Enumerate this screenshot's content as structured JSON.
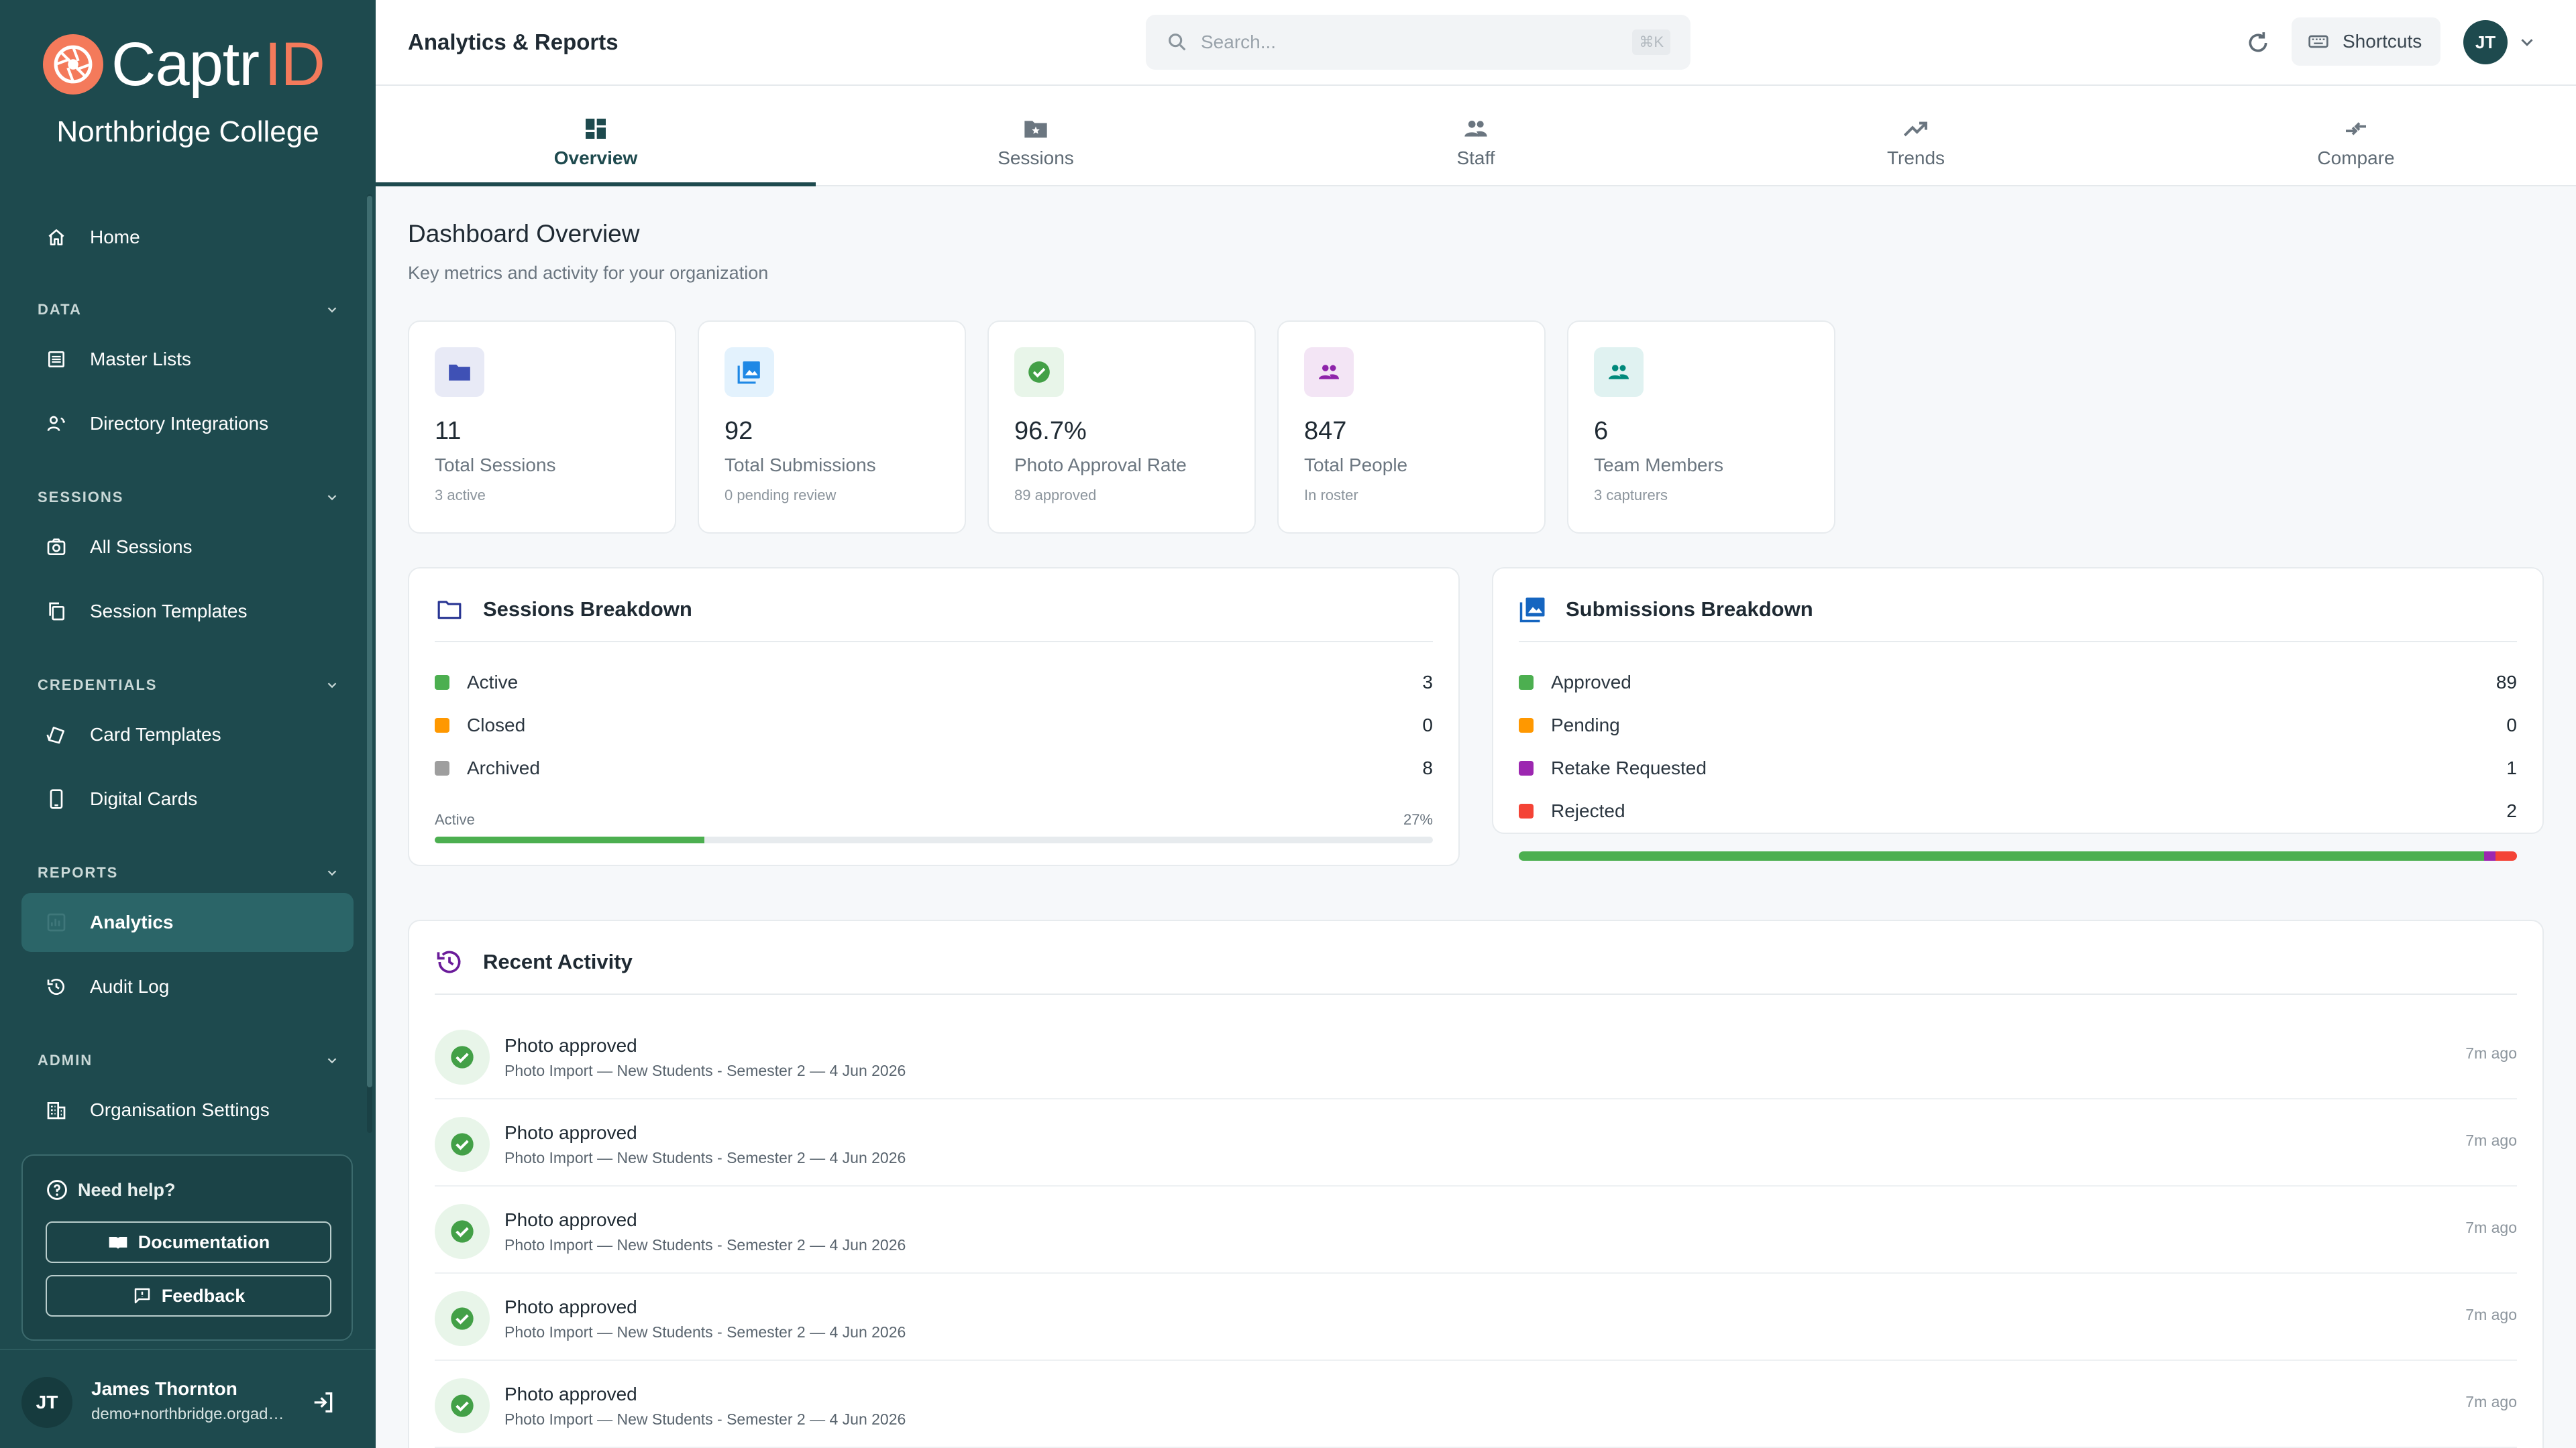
{
  "brand": {
    "name": "Captr",
    "name_suffix": "ID",
    "org": "Northbridge College",
    "accent": "#f47a5b"
  },
  "sidebar": {
    "home": "Home",
    "sections": {
      "data": "DATA",
      "sessions": "SESSIONS",
      "credentials": "CREDENTIALS",
      "reports": "REPORTS",
      "admin": "ADMIN"
    },
    "items": {
      "master_lists": "Master Lists",
      "directory_integrations": "Directory Integrations",
      "all_sessions": "All Sessions",
      "session_templates": "Session Templates",
      "card_templates": "Card Templates",
      "digital_cards": "Digital Cards",
      "analytics": "Analytics",
      "audit_log": "Audit Log",
      "organisation_settings": "Organisation Settings"
    },
    "active_item": "Analytics",
    "help": {
      "title": "Need help?",
      "documentation": "Documentation",
      "feedback": "Feedback"
    },
    "user": {
      "initials": "JT",
      "name": "James Thornton",
      "email": "demo+northbridge.orgadmin@captrid.com"
    }
  },
  "header": {
    "title": "Analytics & Reports",
    "search_placeholder": "Search...",
    "search_shortcut": "⌘K",
    "shortcuts_label": "Shortcuts",
    "avatar_initials": "JT"
  },
  "tabs": [
    {
      "label": "Overview",
      "icon": "dashboard-icon",
      "active": true
    },
    {
      "label": "Sessions",
      "icon": "folder-star-icon",
      "active": false
    },
    {
      "label": "Staff",
      "icon": "people-icon",
      "active": false
    },
    {
      "label": "Trends",
      "icon": "trending-up-icon",
      "active": false
    },
    {
      "label": "Compare",
      "icon": "compare-arrows-icon",
      "active": false
    }
  ],
  "overview": {
    "title": "Dashboard Overview",
    "subtitle": "Key metrics and activity for your organization",
    "stats": [
      {
        "value": "11",
        "label": "Total Sessions",
        "sub": "3 active",
        "icon": "folder-icon",
        "color": "#3f51b5",
        "bg": "#e8eaf6"
      },
      {
        "value": "92",
        "label": "Total Submissions",
        "sub": "0 pending review",
        "icon": "photo-library-icon",
        "color": "#1e88e5",
        "bg": "#e3f2fd"
      },
      {
        "value": "96.7%",
        "label": "Photo Approval Rate",
        "sub": "89 approved",
        "icon": "check-circle-icon",
        "color": "#43a047",
        "bg": "#e8f5e9"
      },
      {
        "value": "847",
        "label": "Total People",
        "sub": "In roster",
        "icon": "people-icon",
        "color": "#8e24aa",
        "bg": "#f3e5f5"
      },
      {
        "value": "6",
        "label": "Team Members",
        "sub": "3 capturers",
        "icon": "team-icon",
        "color": "#00897b",
        "bg": "#e0f2f1"
      }
    ],
    "sessions_breakdown": {
      "title": "Sessions Breakdown",
      "rows": [
        {
          "label": "Active",
          "count": "3",
          "color": "#4caf50"
        },
        {
          "label": "Closed",
          "count": "0",
          "color": "#ff9800"
        },
        {
          "label": "Archived",
          "count": "8",
          "color": "#9e9e9e"
        }
      ],
      "progress_label": "Active",
      "progress_value": "27%",
      "progress_fraction": 0.27
    },
    "submissions_breakdown": {
      "title": "Submissions Breakdown",
      "rows": [
        {
          "label": "Approved",
          "count": "89",
          "value": 89,
          "color": "#4caf50"
        },
        {
          "label": "Pending",
          "count": "0",
          "value": 0,
          "color": "#ff9800"
        },
        {
          "label": "Retake Requested",
          "count": "1",
          "value": 1,
          "color": "#9c27b0"
        },
        {
          "label": "Rejected",
          "count": "2",
          "value": 2,
          "color": "#f44336"
        }
      ]
    },
    "recent_activity": {
      "title": "Recent Activity",
      "items": [
        {
          "title": "Photo approved",
          "detail": "Photo Import — New Students - Semester 2 — 4 Jun 2026",
          "time": "7m ago"
        },
        {
          "title": "Photo approved",
          "detail": "Photo Import — New Students - Semester 2 — 4 Jun 2026",
          "time": "7m ago"
        },
        {
          "title": "Photo approved",
          "detail": "Photo Import — New Students - Semester 2 — 4 Jun 2026",
          "time": "7m ago"
        },
        {
          "title": "Photo approved",
          "detail": "Photo Import — New Students - Semester 2 — 4 Jun 2026",
          "time": "7m ago"
        },
        {
          "title": "Photo approved",
          "detail": "Photo Import — New Students - Semester 2 — 4 Jun 2026",
          "time": "7m ago"
        }
      ]
    }
  }
}
